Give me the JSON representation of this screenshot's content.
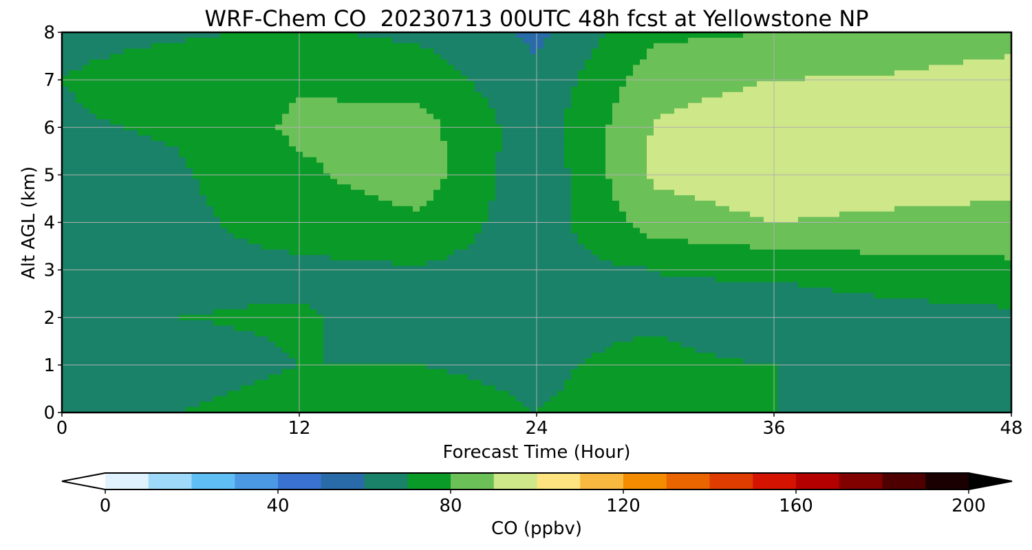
{
  "chart_data": {
    "type": "heatmap",
    "title": "WRF-Chem CO  20230713 00UTC 48h fcst at Yellowstone NP",
    "xlabel": "Forecast Time (Hour)",
    "ylabel": "Alt AGL (km)",
    "xlim": [
      0,
      48
    ],
    "ylim": [
      0,
      8
    ],
    "xticks": [
      "0",
      "12",
      "24",
      "36",
      "48"
    ],
    "yticks": [
      "0",
      "1",
      "2",
      "3",
      "4",
      "5",
      "6",
      "7",
      "8"
    ],
    "grid": true,
    "x": [
      0,
      6,
      12,
      18,
      24,
      30,
      36,
      42,
      48
    ],
    "y": [
      0,
      1,
      2,
      3,
      4,
      5,
      6,
      7,
      8
    ],
    "values": [
      [
        68,
        70,
        73,
        72,
        70,
        72,
        70,
        68,
        68
      ],
      [
        66,
        67,
        70,
        70,
        69,
        72,
        70,
        66,
        66
      ],
      [
        68,
        70,
        71,
        66,
        68,
        69,
        63,
        66,
        68
      ],
      [
        67,
        68,
        68,
        69,
        66,
        70,
        72,
        76,
        78
      ],
      [
        64,
        68,
        74,
        78,
        64,
        85,
        90,
        88,
        86
      ],
      [
        66,
        69,
        78,
        86,
        62,
        92,
        96,
        95,
        95
      ],
      [
        69,
        71,
        82,
        84,
        64,
        91,
        96,
        97,
        99
      ],
      [
        70,
        74,
        79,
        76,
        62,
        86,
        90,
        91,
        94
      ],
      [
        68,
        69,
        71,
        68,
        58,
        78,
        80,
        84,
        86
      ]
    ],
    "colorbar": {
      "label": "CO  (ppbv)",
      "ticks": [
        "0",
        "40",
        "80",
        "120",
        "160",
        "200"
      ],
      "range": [
        0,
        200
      ],
      "levels": 20,
      "extend": "both",
      "colors": [
        "#ffffff",
        "#5fbff5",
        "#2f5fc8",
        "#0a9a28",
        "#fffaa0",
        "#f58c00",
        "#cf0000",
        "#000000"
      ],
      "color_stops": [
        0,
        25,
        50,
        75,
        100,
        125,
        160,
        200
      ]
    }
  }
}
